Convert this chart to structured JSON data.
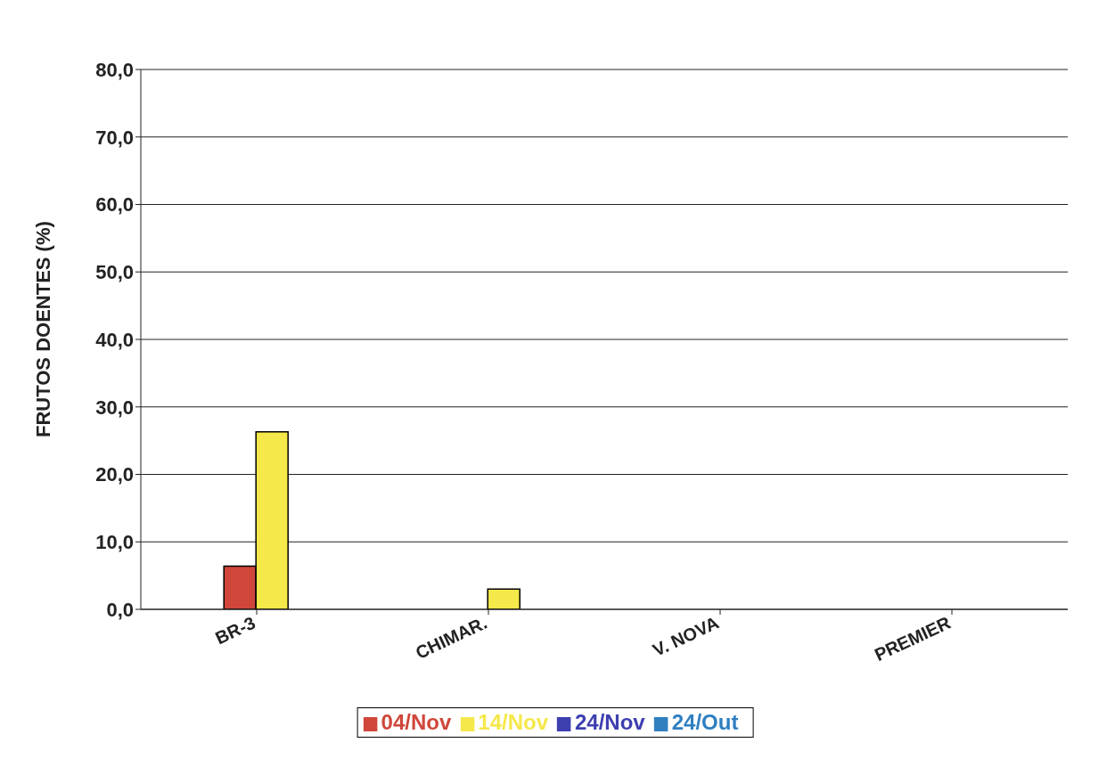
{
  "chart_data": {
    "type": "bar",
    "ylabel": "FRUTOS DOENTES (%)",
    "categories": [
      "BR-3",
      "CHIMAR.",
      "V. NOVA",
      "PREMIER"
    ],
    "series": [
      {
        "name": "24/Out",
        "color": "#2f7fc1",
        "values": [
          0,
          0,
          0,
          0
        ]
      },
      {
        "name": "04/Nov",
        "color": "#d0463a",
        "values": [
          6.4,
          0,
          0,
          null
        ]
      },
      {
        "name": "14/Nov",
        "color": "#f5e84a",
        "values": [
          26.3,
          3.0,
          0,
          null
        ]
      },
      {
        "name": "24/Nov",
        "color": "#3d3fb0",
        "values": [
          null,
          null,
          0,
          null
        ]
      }
    ],
    "ylim": [
      0,
      80
    ],
    "yticks": [
      {
        "value": 0,
        "label": "0,0"
      },
      {
        "value": 10,
        "label": "10,0"
      },
      {
        "value": 20,
        "label": "20,0"
      },
      {
        "value": 30,
        "label": "30,0"
      },
      {
        "value": 40,
        "label": "40,0"
      },
      {
        "value": 50,
        "label": "50,0"
      },
      {
        "value": 60,
        "label": "60,0"
      },
      {
        "value": 70,
        "label": "70,0"
      },
      {
        "value": 80,
        "label": "80,0"
      }
    ],
    "grid": "y",
    "legend": "bottom"
  }
}
